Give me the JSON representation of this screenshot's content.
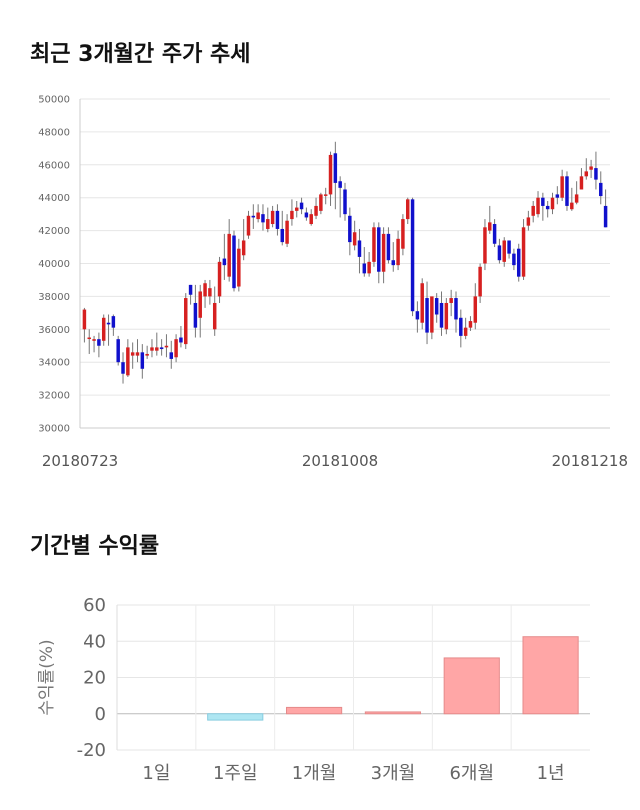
{
  "price_section": {
    "title": "최근 3개월간 주가 추세"
  },
  "returns_section": {
    "title": "기간별 수익률"
  },
  "chart_data": [
    {
      "type": "candlestick",
      "ylim": [
        30000,
        50000
      ],
      "y_ticks": [
        "50000",
        "48000",
        "46000",
        "44000",
        "42000",
        "40000",
        "38000",
        "36000",
        "34000",
        "32000",
        "30000"
      ],
      "x_labels": [
        "20180723",
        "20181008",
        "20181218"
      ],
      "grid": true,
      "colors": {
        "up": "#d62020",
        "down": "#1010cc",
        "wick": "#777777"
      },
      "closes": [
        37200,
        35500,
        35400,
        35000,
        36700,
        36300,
        36100,
        34000,
        33300,
        34900,
        34600,
        34600,
        33600,
        34500,
        34900,
        34900,
        34800,
        35000,
        34200,
        35400,
        35200,
        37900,
        38100,
        36100,
        38300,
        38800,
        38500,
        37600,
        40100,
        39900,
        41800,
        38500,
        40900,
        41400,
        42900,
        42800,
        43100,
        42500,
        42700,
        43200,
        42100,
        41300,
        42600,
        43200,
        43400,
        43300,
        42800,
        43000,
        43500,
        44200,
        44200,
        46600,
        44900,
        44600,
        43000,
        41300,
        41900,
        40400,
        39400,
        40100,
        42200,
        39500,
        41800,
        40200,
        39900,
        41500,
        42700,
        43900,
        37100,
        36600,
        38800,
        35800,
        38000,
        36900,
        36100,
        37600,
        37900,
        36600,
        35600,
        36100,
        36500,
        38000,
        39800,
        42200,
        42500,
        41200,
        40200,
        41400,
        40600,
        39900,
        39200,
        42200,
        42800,
        43500,
        44000,
        43500,
        43300,
        44000,
        44000,
        45300,
        43500,
        43700,
        44200,
        45300,
        45600,
        45900,
        45100,
        44100,
        42200
      ],
      "opens": [
        36000,
        35500,
        35300,
        35400,
        35300,
        36400,
        36800,
        35400,
        34000,
        33200,
        34400,
        34400,
        34600,
        34400,
        34700,
        34700,
        34900,
        34900,
        34600,
        34300,
        35500,
        35100,
        38700,
        37600,
        36700,
        38000,
        38000,
        36000,
        38000,
        40300,
        39200,
        41700,
        38600,
        40500,
        41700,
        42900,
        42700,
        43000,
        42100,
        42400,
        43200,
        42100,
        41200,
        42700,
        43200,
        43700,
        43100,
        42400,
        42900,
        43200,
        44200,
        44200,
        46700,
        45000,
        44500,
        42900,
        41100,
        41400,
        40000,
        39400,
        40100,
        42200,
        39500,
        41800,
        40200,
        39900,
        40900,
        42700,
        43900,
        37100,
        36400,
        37900,
        35800,
        37900,
        37600,
        36000,
        37600,
        37900,
        36700,
        35600,
        36100,
        36400,
        38000,
        40000,
        42000,
        42400,
        41100,
        40100,
        41400,
        40600,
        40900,
        39200,
        42300,
        42900,
        43000,
        44000,
        43500,
        43300,
        44200,
        44000,
        45300,
        43300,
        43700,
        44500,
        45300,
        45700,
        45800,
        44900,
        43500
      ],
      "highs": [
        37300,
        36000,
        35600,
        35800,
        36900,
        36900,
        36900,
        35600,
        34600,
        35400,
        35200,
        35400,
        35100,
        35000,
        35400,
        35800,
        35400,
        35700,
        35300,
        35700,
        36200,
        38200,
        38700,
        38700,
        38700,
        39000,
        39000,
        38600,
        40400,
        41800,
        42700,
        42000,
        41500,
        42700,
        43200,
        43600,
        43600,
        43600,
        43400,
        43500,
        43600,
        43200,
        43000,
        43900,
        43800,
        44000,
        43400,
        43300,
        44000,
        44300,
        44600,
        46800,
        47400,
        45300,
        44900,
        43400,
        42600,
        42100,
        41000,
        40700,
        42500,
        42500,
        42200,
        42200,
        41300,
        42000,
        43000,
        44000,
        44000,
        37700,
        39100,
        38900,
        36700,
        38200,
        38300,
        37900,
        38400,
        38300,
        37200,
        36700,
        36800,
        38800,
        40000,
        42700,
        43500,
        42700,
        41500,
        41600,
        41400,
        40900,
        41200,
        42700,
        43200,
        43800,
        44400,
        44300,
        43800,
        44300,
        44700,
        45700,
        45600,
        44600,
        45000,
        45800,
        46400,
        46300,
        46800,
        45600,
        44500
      ],
      "lows": [
        35200,
        34500,
        34600,
        34300,
        35000,
        35000,
        35600,
        33800,
        32700,
        33100,
        33600,
        34000,
        33000,
        34200,
        34300,
        34400,
        34400,
        34300,
        33600,
        34000,
        34900,
        34800,
        37500,
        35500,
        35500,
        37300,
        37500,
        35600,
        37600,
        39000,
        38900,
        38300,
        38300,
        40200,
        41500,
        42100,
        42500,
        42000,
        41900,
        42200,
        41700,
        41100,
        41000,
        42300,
        42800,
        43000,
        42600,
        42300,
        42700,
        43000,
        43600,
        43500,
        43300,
        42800,
        42600,
        40500,
        40800,
        39400,
        39200,
        39200,
        39800,
        38800,
        38800,
        40000,
        39500,
        39600,
        40500,
        42400,
        36800,
        35800,
        36000,
        35100,
        35400,
        36400,
        35600,
        35700,
        36800,
        35800,
        34900,
        35400,
        35900,
        36000,
        37600,
        39600,
        41800,
        41000,
        40000,
        39800,
        40300,
        39600,
        38900,
        39000,
        42000,
        42500,
        42800,
        42600,
        42800,
        43000,
        43600,
        43800,
        43200,
        43200,
        43600,
        44500,
        45100,
        45200,
        44500,
        43600,
        42200
      ]
    },
    {
      "type": "bar",
      "categories": [
        "1일",
        "1주일",
        "1개월",
        "3개월",
        "6개월",
        "1년"
      ],
      "values": [
        0,
        -3.5,
        3.5,
        1.0,
        30.8,
        42.5
      ],
      "ylim": [
        -20,
        60
      ],
      "y_ticks": [
        "60",
        "40",
        "20",
        "0",
        "-20"
      ],
      "ylabel": "수익률(%)",
      "grid": true,
      "colors": {
        "positive": "#ffa6a6",
        "positive_edge": "#e58a8a",
        "negative": "#aee6f2",
        "negative_edge": "#88cce0"
      }
    }
  ]
}
